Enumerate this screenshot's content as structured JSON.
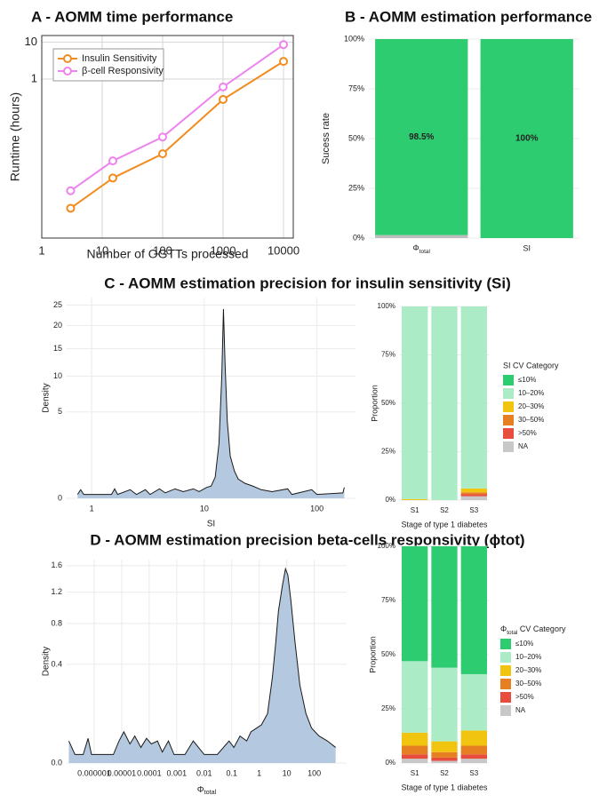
{
  "chart_data": [
    {
      "type": "line",
      "title": "A - AOMM time performance",
      "xlabel": "Number of OGTTs processed",
      "ylabel": "Runtime (hours)",
      "x": [
        3,
        15,
        100,
        1000,
        10000
      ],
      "series": [
        {
          "name": "Insulin Sensitivity",
          "color": "#f28c1e",
          "values": [
            0.00032,
            0.0021,
            0.0095,
            0.28,
            3
          ]
        },
        {
          "name": "β-cell Responsivity",
          "color": "#ee82ee",
          "values": [
            0.00095,
            0.0061,
            0.027,
            0.61,
            8.5
          ]
        }
      ],
      "xscale": "log",
      "yscale": "log",
      "xlim": [
        1,
        14500
      ],
      "ylim": [
        5e-05,
        15
      ],
      "xticks": [
        1,
        10,
        100,
        1000,
        10000
      ],
      "yticks": [
        1,
        10
      ],
      "grid": true,
      "legend": "upper left"
    },
    {
      "type": "stacked_bar",
      "title": "B - AOMM estimation performance",
      "ylabel": "Sucess rate",
      "categories": [
        [
          "Φ",
          "total"
        ],
        "SI"
      ],
      "series": [
        {
          "color": "#2ecc71",
          "values": [
            98.5,
            100
          ],
          "value_labels": [
            "98.5%",
            "100%"
          ]
        },
        {
          "color": "#bdbdbd",
          "values": [
            1.5,
            0
          ]
        }
      ],
      "ylim": [
        0,
        100
      ],
      "yticks": [
        {
          "value": 0,
          "label": "0%"
        },
        {
          "value": 25,
          "label": "25%"
        },
        {
          "value": 50,
          "label": "50%"
        },
        {
          "value": 75,
          "label": "75%"
        },
        {
          "value": 100,
          "label": "100%"
        }
      ],
      "grid": true
    },
    {
      "type": "area",
      "title": "C - AOMM estimation precision for insulin sensitivity (Si)",
      "xlabel": "SI",
      "ylabel": "Density",
      "x": [
        0.75,
        0.8,
        0.85,
        1.5,
        1.6,
        1.7,
        2.2,
        2.5,
        3,
        3.3,
        4,
        4.5,
        5.5,
        6.5,
        8,
        9,
        10.5,
        11.5,
        12.5,
        13.5,
        14.3,
        14.8,
        15.3,
        16,
        17,
        18.5,
        20,
        23,
        27,
        32,
        40,
        55,
        60,
        90,
        100,
        170,
        175
      ],
      "values": [
        0.01,
        0.05,
        0.01,
        0.01,
        0.06,
        0.01,
        0.05,
        0.01,
        0.05,
        0.01,
        0.06,
        0.02,
        0.06,
        0.03,
        0.06,
        0.03,
        0.08,
        0.1,
        0.3,
        2,
        10,
        24,
        12,
        4,
        1.2,
        0.5,
        0.25,
        0.15,
        0.1,
        0.05,
        0.03,
        0.06,
        0.01,
        0.05,
        0.01,
        0.02,
        0.08
      ],
      "color": "#b4c9df",
      "line_color": "#1a1a1a",
      "xscale": "log",
      "yscale": "sqrt",
      "xlim": [
        0.6,
        220
      ],
      "ylim": [
        0,
        27
      ],
      "xticks": [
        1,
        10,
        100
      ],
      "yticks": [
        0,
        5,
        10,
        15,
        20,
        25
      ],
      "grid": true
    },
    {
      "type": "stacked_bar",
      "xlabel": "Stage of type 1 diabetes",
      "ylabel": "Proportion",
      "legend_title": "SI CV Category",
      "categories": [
        "S1",
        "S2",
        "S3"
      ],
      "series": [
        {
          "name": "≤10%",
          "color": "#2ecc71",
          "values": [
            0,
            0,
            0
          ]
        },
        {
          "name": "10–20%",
          "color": "#abebc6",
          "values": [
            99.5,
            100,
            94
          ]
        },
        {
          "name": "20–30%",
          "color": "#f1c40f",
          "values": [
            0.5,
            0,
            2
          ]
        },
        {
          "name": "30–50%",
          "color": "#e67e22",
          "values": [
            0,
            0,
            1
          ]
        },
        {
          "name": ">50%",
          "color": "#e74c3c",
          "values": [
            0,
            0,
            1
          ]
        },
        {
          "name": "NA",
          "color": "#c8c8c8",
          "values": [
            0,
            0,
            2
          ]
        }
      ],
      "ylim": [
        0,
        100
      ],
      "yticks": [
        {
          "value": 0,
          "label": "0%"
        },
        {
          "value": 25,
          "label": "25%"
        },
        {
          "value": 50,
          "label": "50%"
        },
        {
          "value": 75,
          "label": "75%"
        },
        {
          "value": 100,
          "label": "100%"
        }
      ],
      "grid": true
    },
    {
      "type": "area",
      "title": "D - AOMM estimation precision beta-cells responsivity (ϕtot)",
      "xlabel": [
        "Φ",
        "total"
      ],
      "ylabel": "Density",
      "x": [
        1.2e-07,
        2e-07,
        4e-07,
        6e-07,
        8e-07,
        5e-06,
        8e-06,
        1.2e-05,
        2e-05,
        3e-05,
        5e-05,
        8e-05,
        0.00012,
        0.0002,
        0.0003,
        0.0005,
        0.0008,
        0.002,
        0.004,
        0.01,
        0.03,
        0.05,
        0.08,
        0.12,
        0.2,
        0.35,
        0.5,
        0.8,
        1.2,
        2,
        3,
        4,
        5,
        7,
        9,
        11,
        14,
        20,
        30,
        50,
        80,
        150,
        300,
        600
      ],
      "values": [
        0.02,
        0.003,
        0.003,
        0.025,
        0.003,
        0.003,
        0.02,
        0.04,
        0.015,
        0.03,
        0.01,
        0.025,
        0.015,
        0.02,
        0.005,
        0.02,
        0.003,
        0.003,
        0.02,
        0.003,
        0.003,
        0.01,
        0.02,
        0.01,
        0.03,
        0.02,
        0.04,
        0.05,
        0.06,
        0.1,
        0.3,
        0.6,
        0.95,
        1.3,
        1.55,
        1.45,
        1.1,
        0.6,
        0.25,
        0.1,
        0.05,
        0.03,
        0.02,
        0.01
      ],
      "color": "#b4c9df",
      "line_color": "#1a1a1a",
      "xscale": "log",
      "yscale": "sqrt",
      "xlim": [
        1e-07,
        1500
      ],
      "ylim": [
        0,
        1.7
      ],
      "xticks": [
        1e-06,
        1e-05,
        0.0001,
        0.001,
        0.01,
        0.1,
        1,
        10,
        100
      ],
      "yticks": [
        {
          "value": 0,
          "label": "0.0"
        },
        0.4,
        0.8,
        1.2,
        1.6
      ],
      "grid": true
    },
    {
      "type": "stacked_bar",
      "xlabel": "Stage of type 1 diabetes",
      "ylabel": "Proportion",
      "legend_title": [
        "Φ",
        "total",
        " CV Category"
      ],
      "categories": [
        "S1",
        "S2",
        "S3"
      ],
      "series": [
        {
          "name": "≤10%",
          "color": "#2ecc71",
          "values": [
            53,
            56,
            59
          ]
        },
        {
          "name": "10–20%",
          "color": "#abebc6",
          "values": [
            33,
            34,
            26
          ]
        },
        {
          "name": "20–30%",
          "color": "#f1c40f",
          "values": [
            6,
            5,
            7
          ]
        },
        {
          "name": "30–50%",
          "color": "#e67e22",
          "values": [
            4,
            2.5,
            4
          ]
        },
        {
          "name": ">50%",
          "color": "#e74c3c",
          "values": [
            2,
            1.5,
            2
          ]
        },
        {
          "name": "NA",
          "color": "#c8c8c8",
          "values": [
            2,
            1,
            2
          ]
        }
      ],
      "ylim": [
        0,
        100
      ],
      "yticks": [
        {
          "value": 0,
          "label": "0%"
        },
        {
          "value": 25,
          "label": "25%"
        },
        {
          "value": 50,
          "label": "50%"
        },
        {
          "value": 75,
          "label": "75%"
        },
        {
          "value": 100,
          "label": "100%"
        }
      ],
      "grid": true
    }
  ]
}
